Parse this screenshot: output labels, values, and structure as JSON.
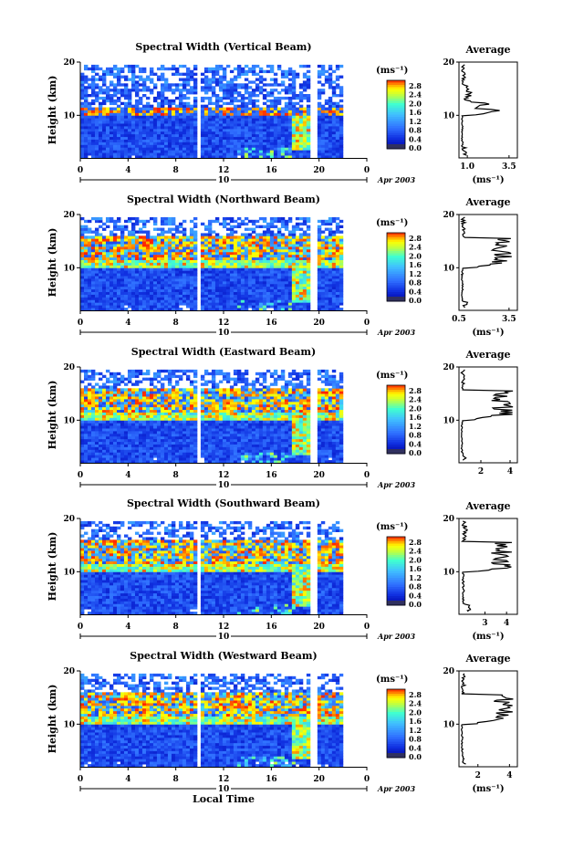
{
  "figure": {
    "xlabel": "Local Time",
    "date_label": "Apr 2003",
    "day_label": "10",
    "unit_label": "(ms⁻¹)",
    "colorbar_ticks": [
      "2.8",
      "2.4",
      "2.0",
      "1.6",
      "1.2",
      "0.8",
      "0.4",
      "0.0"
    ]
  },
  "chart_data": [
    {
      "type": "heatmap",
      "title": "Spectral Width (Vertical Beam)",
      "ylabel": "Height (km)",
      "xlabel": "Local Time",
      "xlim": [
        0,
        24
      ],
      "ylim": [
        2,
        20
      ],
      "xticks": [
        "0",
        "4",
        "8",
        "12",
        "16",
        "20",
        "0"
      ],
      "yticks": [
        "10",
        "20"
      ],
      "colorbar": {
        "unit": "(ms⁻¹)",
        "ticks": [
          "2.8",
          "2.4",
          "2.0",
          "1.6",
          "1.2",
          "0.8",
          "0.4",
          "0.0"
        ]
      },
      "data_gaps_hours": [
        [
          9.8,
          10.0
        ],
        [
          19.4,
          19.6
        ]
      ],
      "profile": {
        "title": "Average",
        "xlabel": "(ms⁻¹)",
        "xticks": [
          "1.0",
          "3.5"
        ],
        "yticks": [
          "10",
          "20"
        ],
        "xlim": [
          0.5,
          4.0
        ],
        "ylim": [
          2,
          20
        ]
      },
      "profile_shape": "vertical"
    },
    {
      "type": "heatmap",
      "title": "Spectral Width (Northward Beam)",
      "ylabel": "Height (km)",
      "xlabel": "Local Time",
      "xlim": [
        0,
        24
      ],
      "ylim": [
        2,
        20
      ],
      "xticks": [
        "0",
        "4",
        "8",
        "12",
        "16",
        "20",
        "0"
      ],
      "yticks": [
        "10",
        "20"
      ],
      "colorbar": {
        "unit": "(ms⁻¹)",
        "ticks": [
          "2.8",
          "2.4",
          "2.0",
          "1.6",
          "1.2",
          "0.8",
          "0.4",
          "0.0"
        ]
      },
      "data_gaps_hours": [
        [
          9.8,
          10.0
        ],
        [
          19.4,
          19.6
        ]
      ],
      "profile": {
        "title": "Average",
        "xlabel": "(ms⁻¹)",
        "xticks": [
          "0.5",
          "3.5"
        ],
        "yticks": [
          "10",
          "20"
        ],
        "xlim": [
          0.5,
          4.0
        ],
        "ylim": [
          2,
          20
        ]
      },
      "profile_shape": "oblique"
    },
    {
      "type": "heatmap",
      "title": "Spectral Width (Eastward Beam)",
      "ylabel": "Height (km)",
      "xlabel": "Local Time",
      "xlim": [
        0,
        24
      ],
      "ylim": [
        2,
        20
      ],
      "xticks": [
        "0",
        "4",
        "8",
        "12",
        "16",
        "20",
        "0"
      ],
      "yticks": [
        "10",
        "20"
      ],
      "colorbar": {
        "unit": "(ms⁻¹)",
        "ticks": [
          "2.8",
          "2.4",
          "2.0",
          "1.6",
          "1.2",
          "0.8",
          "0.4",
          "0.0"
        ]
      },
      "data_gaps_hours": [
        [
          9.8,
          10.0
        ],
        [
          19.4,
          19.6
        ]
      ],
      "profile": {
        "title": "Average",
        "xlabel": "",
        "xticks": [
          "2",
          "4"
        ],
        "yticks": [
          "10",
          "20"
        ],
        "xlim": [
          0.5,
          4.5
        ],
        "ylim": [
          2,
          20
        ]
      },
      "profile_shape": "oblique"
    },
    {
      "type": "heatmap",
      "title": "Spectral Width (Southward Beam)",
      "ylabel": "Height (km)",
      "xlabel": "Local Time",
      "xlim": [
        0,
        24
      ],
      "ylim": [
        2,
        20
      ],
      "xticks": [
        "0",
        "4",
        "8",
        "12",
        "16",
        "20",
        "0"
      ],
      "yticks": [
        "10",
        "20"
      ],
      "colorbar": {
        "unit": "(ms⁻¹)",
        "ticks": [
          "2.8",
          "2.4",
          "2.0",
          "1.6",
          "1.2",
          "0.8",
          "0.4",
          "0.0"
        ]
      },
      "data_gaps_hours": [
        [
          9.8,
          10.0
        ],
        [
          19.4,
          19.6
        ]
      ],
      "profile": {
        "title": "Average",
        "xlabel": "(ms⁻¹)",
        "xticks": [
          "3",
          "4"
        ],
        "yticks": [
          "10",
          "20"
        ],
        "xlim": [
          1.8,
          4.5
        ],
        "ylim": [
          2,
          20
        ]
      },
      "profile_shape": "oblique"
    },
    {
      "type": "heatmap",
      "title": "Spectral Width (Westward Beam)",
      "ylabel": "Height (km)",
      "xlabel": "Local Time",
      "xlim": [
        0,
        24
      ],
      "ylim": [
        2,
        20
      ],
      "xticks": [
        "0",
        "4",
        "8",
        "12",
        "16",
        "20",
        "0"
      ],
      "yticks": [
        "10",
        "20"
      ],
      "colorbar": {
        "unit": "(ms⁻¹)",
        "ticks": [
          "2.8",
          "2.4",
          "2.0",
          "1.6",
          "1.2",
          "0.8",
          "0.4",
          "0.0"
        ]
      },
      "data_gaps_hours": [
        [
          9.8,
          10.0
        ],
        [
          19.4,
          19.6
        ]
      ],
      "profile": {
        "title": "Average",
        "xlabel": "(ms⁻¹)",
        "xticks": [
          "2",
          "4"
        ],
        "yticks": [
          "10",
          "20"
        ],
        "xlim": [
          0.8,
          4.5
        ],
        "ylim": [
          2,
          20
        ]
      },
      "profile_shape": "oblique"
    }
  ]
}
